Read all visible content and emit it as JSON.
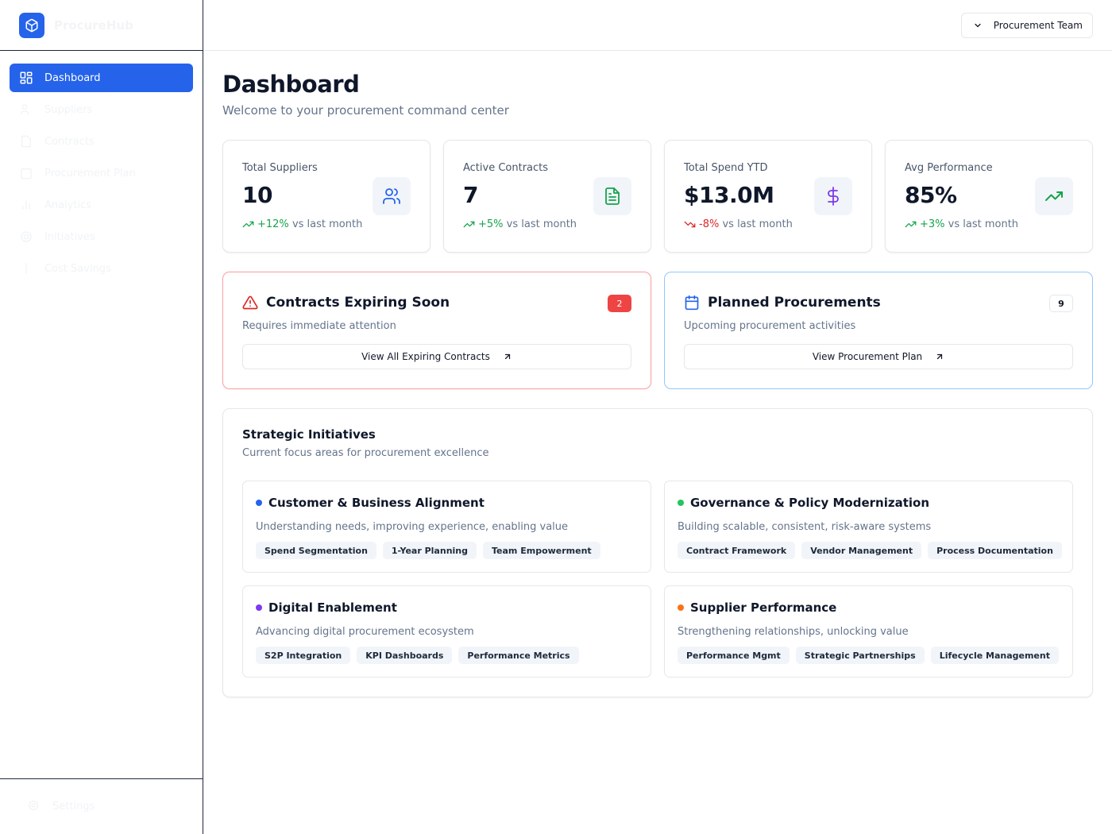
{
  "sidebar": {
    "brand": "ProcureHub",
    "items": [
      {
        "label": "Dashboard",
        "icon": "layout-grid-icon",
        "active": true
      },
      {
        "label": "Suppliers",
        "icon": "users-icon"
      },
      {
        "label": "Contracts",
        "icon": "file-text-icon"
      },
      {
        "label": "Procurement Plan",
        "icon": "calendar-icon"
      },
      {
        "label": "Analytics",
        "icon": "bar-chart-icon"
      },
      {
        "label": "Initiatives",
        "icon": "target-icon"
      },
      {
        "label": "Cost Savings",
        "icon": "dollar-icon"
      }
    ],
    "footer_label": "Settings"
  },
  "topbar": {
    "team_label": "Procurement Team"
  },
  "page": {
    "title": "Dashboard",
    "subtitle": "Welcome to your procurement command center"
  },
  "stats": [
    {
      "label": "Total Suppliers",
      "value": "10",
      "change": "+12%",
      "change_suffix": "vs last month",
      "direction": "up",
      "icon": "users-icon",
      "icon_color": "#2563eb"
    },
    {
      "label": "Active Contracts",
      "value": "7",
      "change": "+5%",
      "change_suffix": "vs last month",
      "direction": "up",
      "icon": "file-text-icon",
      "icon_color": "#16a34a"
    },
    {
      "label": "Total Spend YTD",
      "value": "$13.0M",
      "change": "-8%",
      "change_suffix": "vs last month",
      "direction": "down",
      "icon": "dollar-icon",
      "icon_color": "#7c3aed"
    },
    {
      "label": "Avg Performance",
      "value": "85%",
      "change": "+3%",
      "change_suffix": "vs last month",
      "direction": "up",
      "icon": "trending-up-icon",
      "icon_color": "#16a34a"
    }
  ],
  "alerts": {
    "expiring": {
      "title": "Contracts Expiring Soon",
      "subtitle": "Requires immediate attention",
      "count": "2",
      "button": "View All Expiring Contracts"
    },
    "planned": {
      "title": "Planned Procurements",
      "subtitle": "Upcoming procurement activities",
      "count": "9",
      "button": "View Procurement Plan"
    }
  },
  "strategic": {
    "title": "Strategic Initiatives",
    "subtitle": "Current focus areas for procurement excellence",
    "initiatives": [
      {
        "title": "Customer & Business Alignment",
        "description": "Understanding needs, improving experience, enabling value",
        "color": "#2563eb",
        "tags": [
          "Spend Segmentation",
          "1-Year Planning",
          "Team Empowerment"
        ]
      },
      {
        "title": "Governance & Policy Modernization",
        "description": "Building scalable, consistent, risk-aware systems",
        "color": "#22c55e",
        "tags": [
          "Contract Framework",
          "Vendor Management",
          "Process Documentation"
        ]
      },
      {
        "title": "Digital Enablement",
        "description": "Advancing digital procurement ecosystem",
        "color": "#7c3aed",
        "tags": [
          "S2P Integration",
          "KPI Dashboards",
          "Performance Metrics"
        ]
      },
      {
        "title": "Supplier Performance",
        "description": "Strengthening relationships, unlocking value",
        "color": "#f97316",
        "tags": [
          "Performance Mgmt",
          "Strategic Partnerships",
          "Lifecycle Management"
        ]
      }
    ]
  },
  "colors": {
    "accent": "#2563eb",
    "danger": "#ef4444",
    "success": "#16a34a"
  }
}
